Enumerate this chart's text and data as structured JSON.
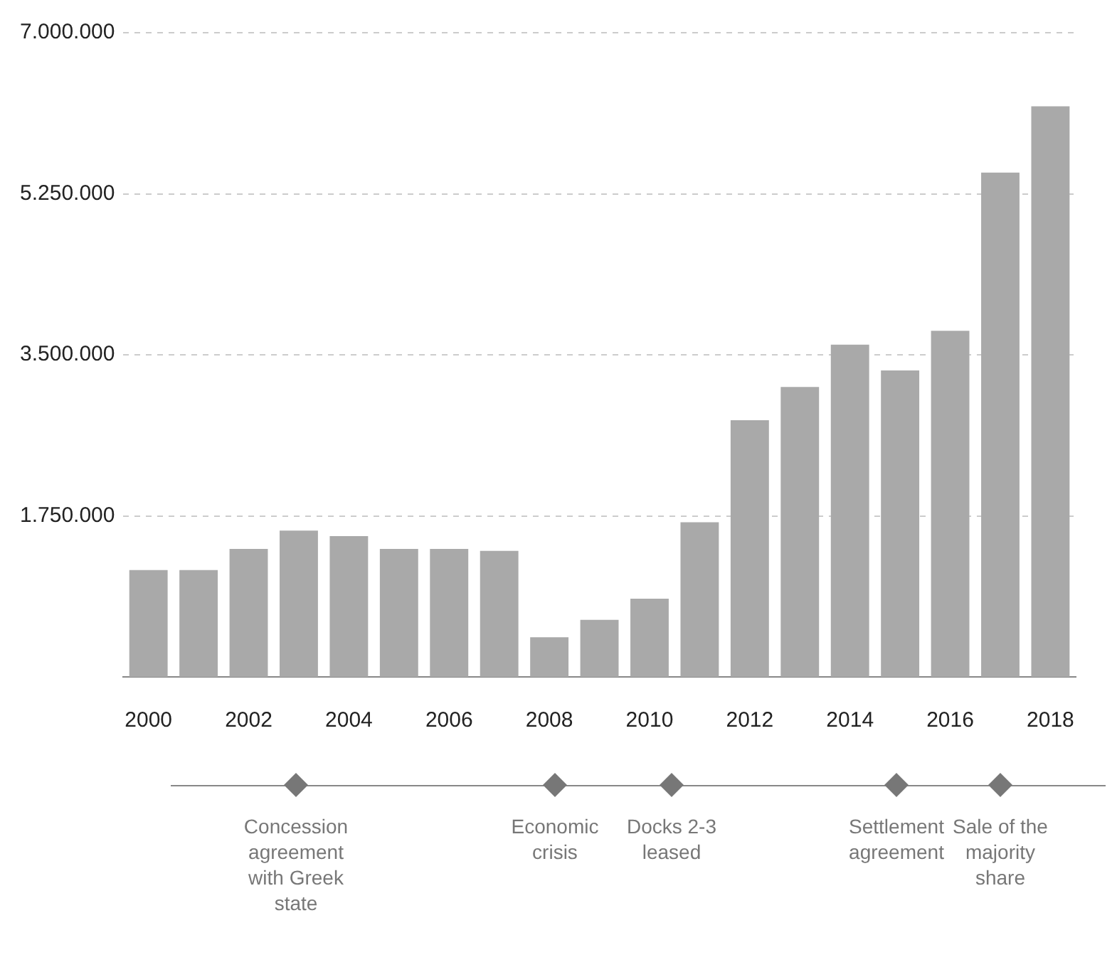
{
  "chart_data": {
    "type": "bar",
    "categories": [
      "2000",
      null,
      "2002",
      null,
      "2004",
      null,
      "2006",
      null,
      "2008",
      null,
      "2010",
      null,
      "2012",
      null,
      "2014",
      null,
      "2016",
      null,
      "2018"
    ],
    "values": [
      1160000,
      1160000,
      1390000,
      1590000,
      1530000,
      1390000,
      1390000,
      1370000,
      430000,
      620000,
      850000,
      1680000,
      2790000,
      3150000,
      3610000,
      3330000,
      3760000,
      5480000,
      6200000
    ],
    "color": "#a9a9a9",
    "ylim": [
      0,
      7000000
    ],
    "yticks": [
      {
        "value": 1750000,
        "label": "1.750.000"
      },
      {
        "value": 3500000,
        "label": "3.500.000"
      },
      {
        "value": 5250000,
        "label": "5.250.000"
      },
      {
        "value": 7000000,
        "label": "7.000.000"
      }
    ],
    "grid": "y",
    "annotations": [
      "Concession agreement with Greek state",
      "Economic crisis",
      "Docks 2-3 leased",
      "Settlement agreement",
      "Sale of the majority share"
    ]
  }
}
